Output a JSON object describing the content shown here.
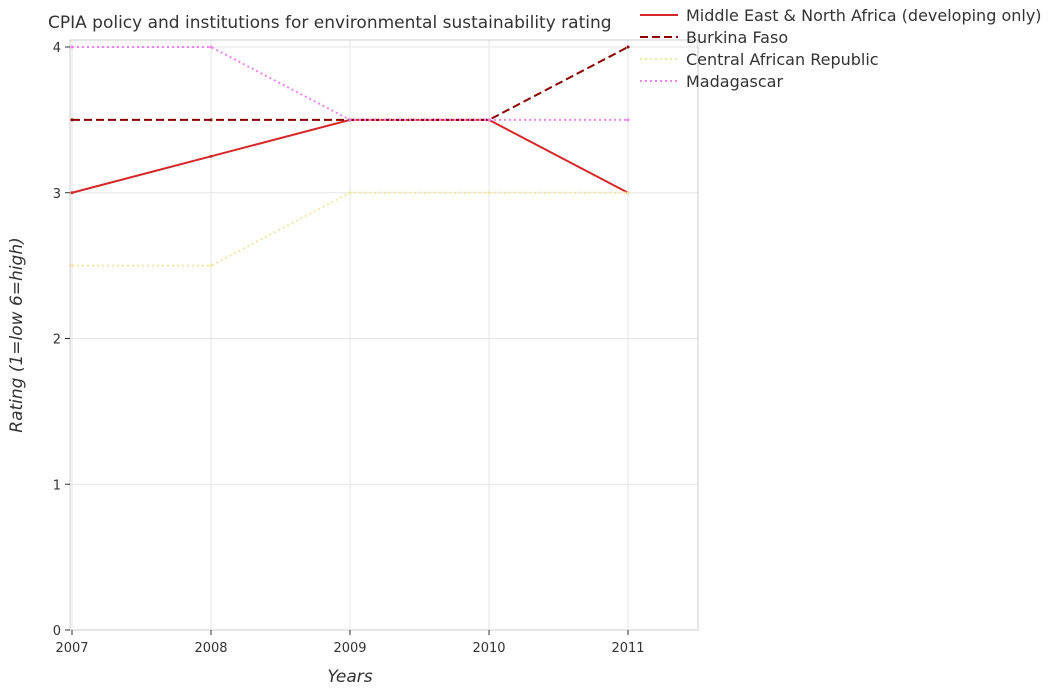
{
  "chart_data": {
    "type": "line",
    "title": "CPIA policy and institutions for environmental sustainability rating",
    "xlabel": "Years",
    "ylabel": "Rating (1=low 6=high)",
    "categories": [
      "2007",
      "2008",
      "2009",
      "2010",
      "2011"
    ],
    "ylim": [
      0,
      4
    ],
    "yticks": [
      "0",
      "1",
      "2",
      "3",
      "4"
    ],
    "grid": true,
    "legend_position": "top-right",
    "series": [
      {
        "name": "Middle East & North Africa (developing only)",
        "values": [
          3.0,
          3.25,
          3.5,
          3.5,
          3.0
        ],
        "color": "#d62728",
        "dash": "solid"
      },
      {
        "name": "Burkina Faso",
        "values": [
          3.5,
          3.5,
          3.5,
          3.5,
          4.0
        ],
        "color": "#8b0000",
        "dash": "dashed"
      },
      {
        "name": "Central African Republic",
        "values": [
          2.5,
          2.5,
          3.0,
          3.0,
          3.0
        ],
        "color": "#f5e6a3",
        "dash": "dotted"
      },
      {
        "name": "Madagascar",
        "values": [
          4.0,
          4.0,
          3.5,
          3.5,
          3.5
        ],
        "color": "#ee82ee",
        "dash": "dotted"
      }
    ]
  }
}
